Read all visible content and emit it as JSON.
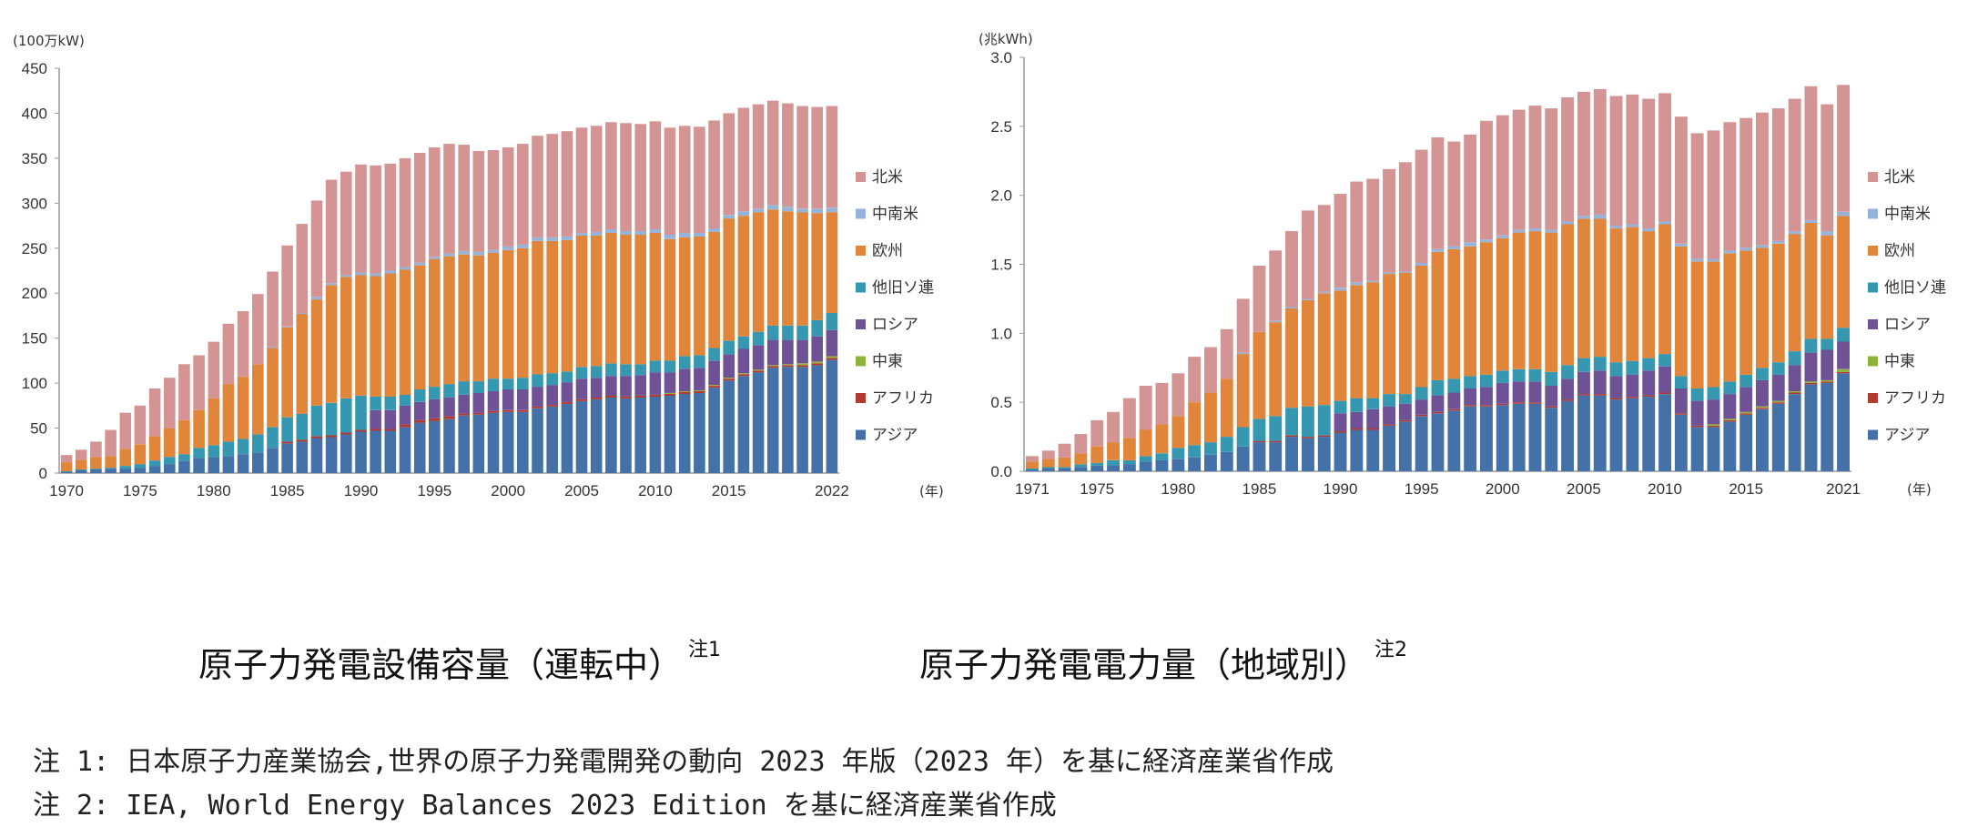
{
  "colors": {
    "北米": "#d49494",
    "中南米": "#96b4da",
    "欧州": "#e0853a",
    "他旧ソ連": "#3598b0",
    "ロシア": "#6f5196",
    "中東": "#8fb33a",
    "アフリカ": "#b33a2e",
    "アジア": "#4472a8"
  },
  "titles": {
    "left": "原子力発電設備容量（運転中）",
    "left_note_mark": "注1",
    "right": "原子力発電電力量（地域別）",
    "right_note_mark": "注2"
  },
  "notes": [
    "注 1: 日本原子力産業協会,世界の原子力発電開発の動向 2023 年版（2023 年）を基に経済産業省作成",
    "注 2: IEA, World Energy Balances 2023 Edition を基に経済産業省作成"
  ],
  "chart_data": [
    {
      "type": "bar",
      "stacked": true,
      "ylabel": "(100万kW)",
      "xlabel": "(年)",
      "ylim": [
        0,
        450
      ],
      "yticks": [
        0,
        50,
        100,
        150,
        200,
        250,
        300,
        350,
        400,
        450
      ],
      "xtick_labels": [
        "1970",
        "1975",
        "1980",
        "1985",
        "1990",
        "1995",
        "2000",
        "2005",
        "2010",
        "2015",
        "2022"
      ],
      "legend_position": "right",
      "x": [
        1970,
        1971,
        1972,
        1973,
        1974,
        1975,
        1976,
        1977,
        1978,
        1979,
        1980,
        1981,
        1982,
        1983,
        1984,
        1985,
        1986,
        1987,
        1988,
        1989,
        1990,
        1991,
        1992,
        1993,
        1994,
        1995,
        1996,
        1997,
        1998,
        1999,
        2000,
        2001,
        2002,
        2003,
        2004,
        2005,
        2006,
        2007,
        2008,
        2009,
        2010,
        2011,
        2012,
        2013,
        2014,
        2015,
        2016,
        2017,
        2018,
        2019,
        2020,
        2021,
        2022
      ],
      "series": [
        {
          "name": "アジア",
          "values": [
            1,
            3,
            4,
            5,
            5,
            6,
            8,
            10,
            14,
            17,
            18,
            19,
            21,
            23,
            28,
            33,
            35,
            39,
            40,
            43,
            46,
            47,
            47,
            51,
            56,
            58,
            60,
            64,
            65,
            67,
            68,
            68,
            72,
            74,
            77,
            80,
            82,
            84,
            83,
            84,
            85,
            86,
            88,
            89,
            95,
            103,
            108,
            112,
            117,
            118,
            118,
            120,
            126
          ]
        },
        {
          "name": "アフリカ",
          "values": [
            0,
            0,
            0,
            0,
            0,
            0,
            0,
            0,
            0,
            0,
            0,
            0,
            0,
            0,
            0,
            2,
            2,
            2,
            2,
            2,
            2,
            2,
            2,
            3,
            3,
            3,
            3,
            2,
            2,
            2,
            2,
            2,
            2,
            2,
            2,
            2,
            2,
            2,
            2,
            2,
            2,
            2,
            2,
            2,
            2,
            2,
            2,
            2,
            2,
            2,
            2,
            2,
            2
          ]
        },
        {
          "name": "中東",
          "values": [
            0,
            0,
            0,
            0,
            0,
            0,
            0,
            0,
            0,
            0,
            0,
            0,
            0,
            0,
            0,
            0,
            0,
            0,
            0,
            0,
            0,
            0,
            0,
            0,
            0,
            0,
            0,
            0,
            0,
            0,
            0,
            0,
            0,
            0,
            0,
            0,
            0,
            0,
            0,
            0,
            0,
            1,
            1,
            1,
            1,
            1,
            1,
            1,
            1,
            1,
            2,
            2,
            2
          ]
        },
        {
          "name": "ロシア",
          "values": [
            0,
            0,
            0,
            0,
            0,
            0,
            0,
            0,
            0,
            0,
            0,
            0,
            0,
            0,
            0,
            0,
            0,
            0,
            0,
            0,
            0,
            21,
            21,
            21,
            20,
            21,
            21,
            21,
            22,
            22,
            23,
            23,
            22,
            22,
            22,
            23,
            22,
            22,
            23,
            23,
            25,
            23,
            25,
            25,
            27,
            26,
            27,
            27,
            28,
            27,
            26,
            28,
            29
          ]
        },
        {
          "name": "他旧ソ連",
          "values": [
            1,
            1,
            1,
            1,
            3,
            4,
            6,
            8,
            7,
            11,
            13,
            16,
            17,
            20,
            23,
            27,
            29,
            34,
            36,
            38,
            38,
            15,
            15,
            12,
            14,
            14,
            15,
            15,
            13,
            14,
            12,
            13,
            14,
            13,
            12,
            13,
            13,
            14,
            13,
            12,
            13,
            13,
            14,
            14,
            14,
            15,
            14,
            15,
            16,
            16,
            16,
            18,
            19
          ]
        },
        {
          "name": "欧州",
          "values": [
            10,
            11,
            13,
            13,
            19,
            22,
            27,
            32,
            38,
            42,
            52,
            64,
            69,
            78,
            88,
            100,
            111,
            118,
            131,
            135,
            134,
            134,
            137,
            139,
            138,
            142,
            142,
            141,
            140,
            140,
            143,
            144,
            148,
            147,
            146,
            146,
            145,
            145,
            144,
            144,
            142,
            135,
            132,
            132,
            129,
            136,
            134,
            133,
            129,
            127,
            126,
            119,
            112
          ]
        },
        {
          "name": "中南米",
          "values": [
            0,
            0,
            0,
            0,
            0,
            0,
            0,
            0,
            0,
            0,
            0,
            0,
            0,
            0,
            1,
            1,
            1,
            3,
            2,
            2,
            3,
            3,
            3,
            3,
            3,
            2,
            3,
            4,
            4,
            3,
            4,
            4,
            4,
            4,
            4,
            3,
            4,
            4,
            4,
            4,
            4,
            5,
            5,
            4,
            4,
            4,
            5,
            4,
            5,
            5,
            4,
            5,
            5
          ]
        },
        {
          "name": "北米",
          "values": [
            8,
            11,
            17,
            29,
            40,
            43,
            53,
            56,
            62,
            61,
            63,
            67,
            73,
            78,
            84,
            90,
            99,
            107,
            115,
            115,
            120,
            120,
            119,
            121,
            122,
            122,
            122,
            118,
            112,
            111,
            110,
            112,
            113,
            115,
            117,
            117,
            118,
            119,
            120,
            119,
            120,
            119,
            119,
            118,
            120,
            113,
            115,
            116,
            116,
            115,
            114,
            113,
            113
          ]
        }
      ]
    },
    {
      "type": "bar",
      "stacked": true,
      "ylabel": "(兆kWh)",
      "xlabel": "(年)",
      "ylim": [
        0,
        3.0
      ],
      "yticks": [
        "0.0",
        "0.5",
        "1.0",
        "1.5",
        "2.0",
        "2.5",
        "3.0"
      ],
      "xtick_labels": [
        "1971",
        "1975",
        "1980",
        "1985",
        "1990",
        "1995",
        "2000",
        "2005",
        "2010",
        "2015",
        "2021"
      ],
      "legend_position": "right",
      "x": [
        1971,
        1972,
        1973,
        1974,
        1975,
        1976,
        1977,
        1978,
        1979,
        1980,
        1981,
        1982,
        1983,
        1984,
        1985,
        1986,
        1987,
        1988,
        1989,
        1990,
        1991,
        1992,
        1993,
        1994,
        1995,
        1996,
        1997,
        1998,
        1999,
        2000,
        2001,
        2002,
        2003,
        2004,
        2005,
        2006,
        2007,
        2008,
        2009,
        2010,
        2011,
        2012,
        2013,
        2014,
        2015,
        2016,
        2017,
        2018,
        2019,
        2020,
        2021
      ],
      "series": [
        {
          "name": "アジア",
          "values": [
            0.01,
            0.02,
            0.02,
            0.03,
            0.04,
            0.04,
            0.05,
            0.07,
            0.08,
            0.09,
            0.1,
            0.12,
            0.14,
            0.18,
            0.21,
            0.21,
            0.25,
            0.24,
            0.25,
            0.28,
            0.3,
            0.3,
            0.33,
            0.36,
            0.4,
            0.42,
            0.44,
            0.47,
            0.47,
            0.48,
            0.49,
            0.49,
            0.46,
            0.51,
            0.55,
            0.55,
            0.52,
            0.53,
            0.54,
            0.56,
            0.41,
            0.32,
            0.32,
            0.36,
            0.41,
            0.45,
            0.49,
            0.56,
            0.63,
            0.64,
            0.71
          ]
        },
        {
          "name": "アフリカ",
          "values": [
            0,
            0,
            0,
            0,
            0,
            0,
            0,
            0,
            0,
            0,
            0,
            0,
            0,
            0,
            0.01,
            0.01,
            0.01,
            0.01,
            0.01,
            0.01,
            0.01,
            0.01,
            0.01,
            0.01,
            0.01,
            0.01,
            0.01,
            0.01,
            0.01,
            0.01,
            0.01,
            0.01,
            0.01,
            0.01,
            0.01,
            0.01,
            0.01,
            0.01,
            0.01,
            0.01,
            0.01,
            0.01,
            0.01,
            0.01,
            0.01,
            0.01,
            0.01,
            0.01,
            0.01,
            0.01,
            0.01
          ]
        },
        {
          "name": "中東",
          "values": [
            0,
            0,
            0,
            0,
            0,
            0,
            0,
            0,
            0,
            0,
            0,
            0,
            0,
            0,
            0,
            0,
            0,
            0,
            0,
            0,
            0,
            0,
            0,
            0,
            0,
            0,
            0,
            0,
            0,
            0,
            0,
            0,
            0,
            0,
            0,
            0,
            0,
            0,
            0,
            0,
            0,
            0,
            0.01,
            0.01,
            0.01,
            0.01,
            0.01,
            0.01,
            0.01,
            0.01,
            0.02
          ]
        },
        {
          "name": "ロシア",
          "values": [
            0,
            0,
            0,
            0,
            0,
            0,
            0,
            0,
            0,
            0,
            0,
            0,
            0,
            0,
            0,
            0,
            0,
            0,
            0,
            0.13,
            0.12,
            0.14,
            0.13,
            0.12,
            0.11,
            0.12,
            0.12,
            0.12,
            0.13,
            0.15,
            0.15,
            0.15,
            0.15,
            0.15,
            0.16,
            0.17,
            0.16,
            0.16,
            0.18,
            0.19,
            0.18,
            0.18,
            0.18,
            0.18,
            0.18,
            0.19,
            0.19,
            0.19,
            0.21,
            0.22,
            0.2
          ]
        },
        {
          "name": "他旧ソ連",
          "values": [
            0.01,
            0.01,
            0.01,
            0.02,
            0.02,
            0.04,
            0.03,
            0.04,
            0.05,
            0.08,
            0.09,
            0.09,
            0.11,
            0.14,
            0.16,
            0.18,
            0.2,
            0.22,
            0.22,
            0.09,
            0.1,
            0.08,
            0.09,
            0.07,
            0.09,
            0.11,
            0.1,
            0.09,
            0.09,
            0.09,
            0.09,
            0.09,
            0.1,
            0.1,
            0.1,
            0.1,
            0.1,
            0.1,
            0.09,
            0.09,
            0.09,
            0.09,
            0.09,
            0.09,
            0.09,
            0.09,
            0.09,
            0.1,
            0.1,
            0.08,
            0.1
          ]
        },
        {
          "name": "欧州",
          "values": [
            0.05,
            0.06,
            0.07,
            0.08,
            0.12,
            0.13,
            0.16,
            0.19,
            0.21,
            0.23,
            0.31,
            0.36,
            0.42,
            0.53,
            0.63,
            0.68,
            0.72,
            0.77,
            0.81,
            0.8,
            0.82,
            0.84,
            0.87,
            0.88,
            0.88,
            0.93,
            0.94,
            0.94,
            0.96,
            0.96,
            0.99,
            1.0,
            1.01,
            1.02,
            1.01,
            1.0,
            0.97,
            0.97,
            0.92,
            0.94,
            0.94,
            0.92,
            0.91,
            0.93,
            0.9,
            0.87,
            0.86,
            0.85,
            0.84,
            0.75,
            0.81
          ]
        },
        {
          "name": "中南米",
          "values": [
            0,
            0,
            0,
            0,
            0,
            0,
            0,
            0,
            0,
            0,
            0,
            0,
            0,
            0.01,
            0,
            0.01,
            0.01,
            0.01,
            0.01,
            0.02,
            0.02,
            0.01,
            0.01,
            0.01,
            0.02,
            0.02,
            0.02,
            0.03,
            0.02,
            0.02,
            0.02,
            0.02,
            0.02,
            0.02,
            0.02,
            0.03,
            0.02,
            0.02,
            0.02,
            0.02,
            0.02,
            0.02,
            0.02,
            0.02,
            0.02,
            0.02,
            0.02,
            0.02,
            0.02,
            0.03,
            0.03
          ]
        },
        {
          "name": "北米",
          "values": [
            0.04,
            0.06,
            0.1,
            0.14,
            0.19,
            0.22,
            0.29,
            0.32,
            0.3,
            0.31,
            0.33,
            0.33,
            0.36,
            0.39,
            0.48,
            0.51,
            0.55,
            0.64,
            0.63,
            0.68,
            0.73,
            0.74,
            0.75,
            0.79,
            0.82,
            0.81,
            0.76,
            0.78,
            0.86,
            0.87,
            0.87,
            0.89,
            0.88,
            0.9,
            0.9,
            0.91,
            0.94,
            0.94,
            0.94,
            0.93,
            0.92,
            0.91,
            0.93,
            0.93,
            0.94,
            0.96,
            0.96,
            0.96,
            0.97,
            0.92,
            0.92
          ]
        }
      ]
    }
  ]
}
